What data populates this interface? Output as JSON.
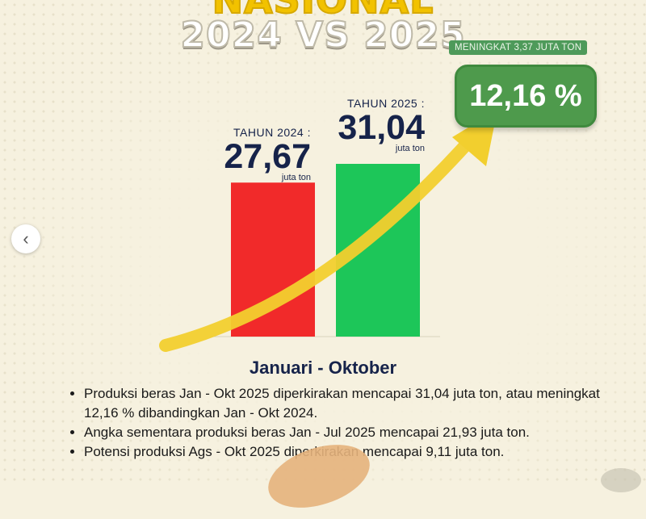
{
  "header": {
    "line1": "NASIONAL",
    "line2": "2024 VS 2025"
  },
  "badges": {
    "increase_amount": "MENINGKAT 3,37 JUTA TON",
    "increase_percent": "12,16 %"
  },
  "colors": {
    "bar_2024": "#f12a2a",
    "bar_2025": "#1dc659",
    "arrow": "#f2cf2e",
    "badge": "#4e9a4c",
    "text_dark": "#16234a"
  },
  "chart_data": {
    "type": "bar",
    "categories": [
      "TAHUN 2024 :",
      "TAHUN 2025 :"
    ],
    "values": [
      27.67,
      31.04
    ],
    "value_labels": [
      "27,67",
      "31,04"
    ],
    "unit": "juta ton",
    "ylim": [
      0,
      31.04
    ]
  },
  "period": "Januari - Oktober",
  "notes": [
    "Produksi beras Jan - Okt 2025 diperkirakan mencapai 31,04 juta ton, atau meningkat 12,16 % dibandingkan Jan - Okt 2024.",
    "Angka sementara produksi beras Jan - Jul 2025 mencapai 21,93 juta ton.",
    "Potensi produksi Ags - Okt 2025 diperkirakan mencapai 9,11 juta ton."
  ],
  "icons": {
    "nav": "chevron-left-icon"
  }
}
